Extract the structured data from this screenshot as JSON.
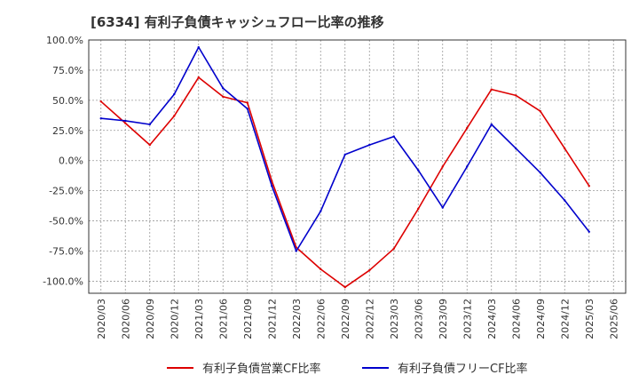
{
  "chart_data": {
    "type": "line",
    "title": "[6334]  有利子負債キャッシュフロー比率の推移",
    "xlabel": "",
    "ylabel": "",
    "ylim": [
      -110,
      100
    ],
    "y_ticks": [
      100,
      75,
      50,
      25,
      0,
      -25,
      -50,
      -75,
      -100
    ],
    "y_tick_labels": [
      "100.0%",
      "75.0%",
      "50.0%",
      "25.0%",
      "0.0%",
      "-25.0%",
      "-50.0%",
      "-75.0%",
      "-100.0%"
    ],
    "x_tick_labels": [
      "2020/03",
      "2020/06",
      "2020/09",
      "2020/12",
      "2021/03",
      "2021/06",
      "2021/09",
      "2021/12",
      "2022/03",
      "2022/06",
      "2022/09",
      "2022/12",
      "2023/03",
      "2023/06",
      "2023/09",
      "2023/12",
      "2024/03",
      "2024/06",
      "2024/09",
      "2024/12",
      "2025/03",
      "2025/06"
    ],
    "grid": true,
    "legend_position": "bottom",
    "series": [
      {
        "name": "有利子負債営業CF比率",
        "color": "#dd0000",
        "values": [
          49,
          31,
          13,
          37,
          69,
          53,
          48,
          -17,
          -72,
          -90,
          -105,
          -91,
          -73,
          -40,
          -5,
          27,
          59,
          54,
          41,
          10,
          -21
        ]
      },
      {
        "name": "有利子負債フリーCF比率",
        "color": "#0000cc",
        "values": [
          35,
          33,
          30,
          55,
          94,
          60,
          43,
          -21,
          -75,
          -42,
          5,
          13,
          20,
          -8,
          -39,
          -5,
          30,
          10,
          -10,
          -33,
          -59
        ]
      }
    ]
  }
}
